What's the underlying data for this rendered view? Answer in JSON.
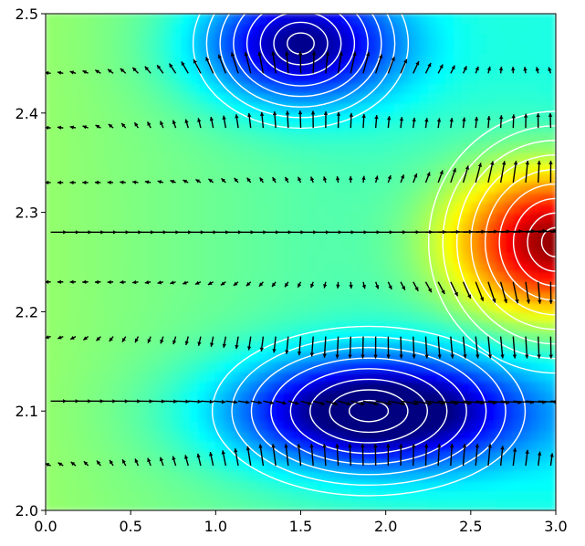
{
  "chart_data": {
    "type": "heatmap",
    "title": "",
    "xlabel": "",
    "ylabel": "",
    "xlim": [
      0.0,
      3.0
    ],
    "ylim": [
      2.0,
      2.5
    ],
    "x_ticks": [
      "0.0",
      "0.5",
      "1.0",
      "1.5",
      "2.0",
      "2.5",
      "3.0"
    ],
    "y_ticks": [
      "2.0",
      "2.1",
      "2.2",
      "2.3",
      "2.4",
      "2.5"
    ],
    "colormap": "jet",
    "contour_color": "#ffffff",
    "quiver_color": "#000000",
    "quiver_rows_y": [
      2.045,
      2.11,
      2.175,
      2.23,
      2.28,
      2.33,
      2.385,
      2.44
    ],
    "quiver_cols": 41,
    "features": [
      {
        "kind": "minimum",
        "x": 1.5,
        "y": 2.47,
        "rx": 0.55,
        "ry": 0.055,
        "level": 0.12
      },
      {
        "kind": "minimum",
        "x": 1.9,
        "y": 2.1,
        "rx": 0.8,
        "ry": 0.055,
        "level": 0.04
      },
      {
        "kind": "maximum",
        "x": 3.0,
        "y": 2.27,
        "rx": 0.65,
        "ry": 0.085,
        "level": 0.97
      }
    ],
    "grid": false,
    "legend": "none"
  }
}
